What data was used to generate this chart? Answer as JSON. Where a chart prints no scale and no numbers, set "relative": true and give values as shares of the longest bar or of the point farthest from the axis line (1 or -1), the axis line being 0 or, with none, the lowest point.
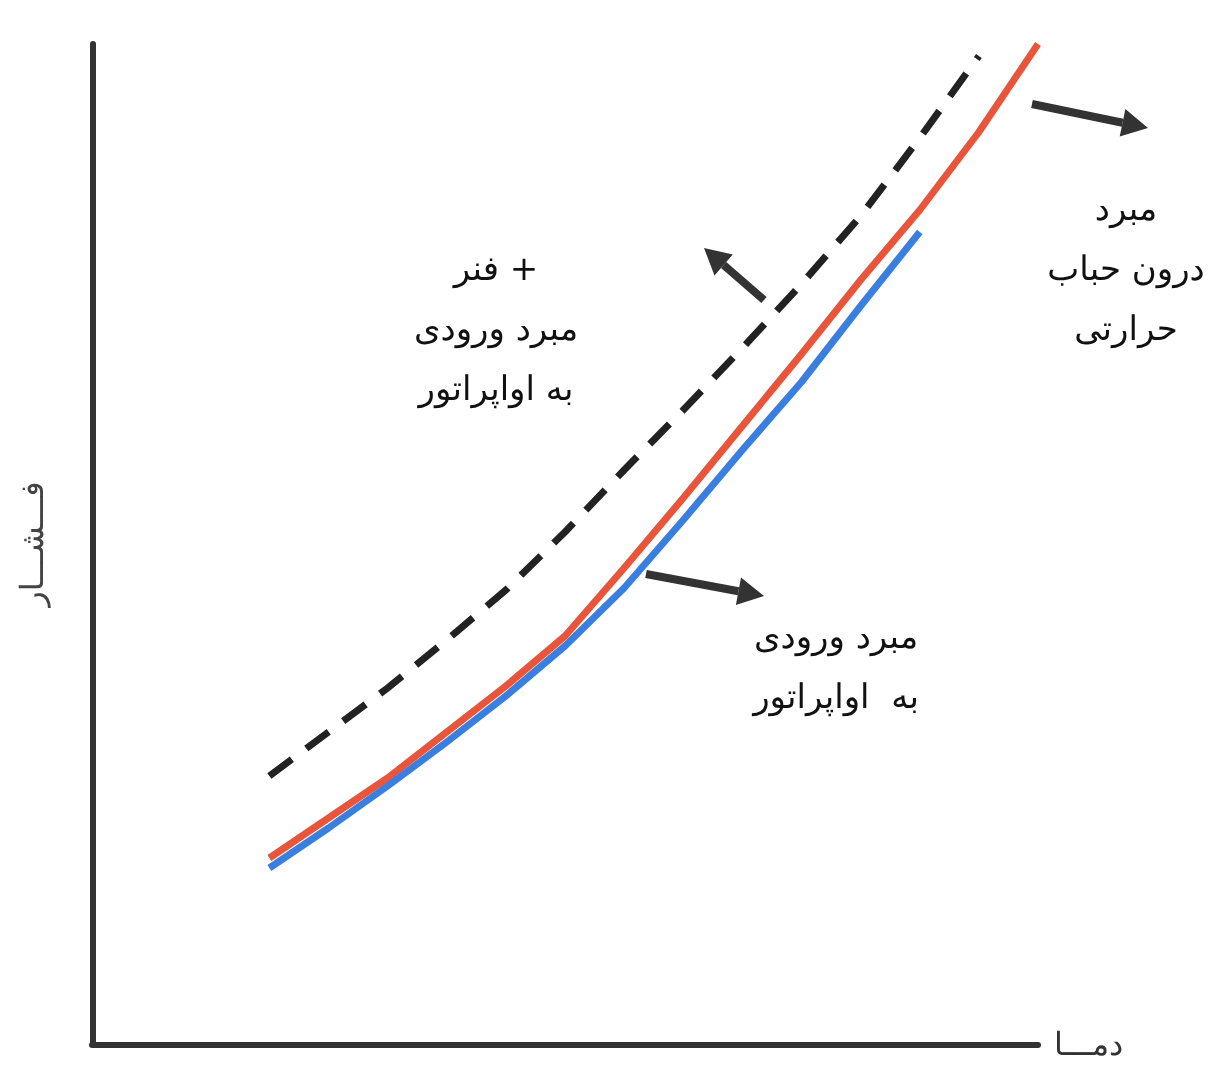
{
  "chart_data": {
    "type": "line",
    "relative": true,
    "xlabel": "دمـــا",
    "ylabel": "فـــشـــار",
    "categories": [
      null,
      null,
      null,
      null,
      null,
      null,
      null,
      null,
      null,
      null,
      null,
      null,
      null,
      null,
      null,
      null,
      null
    ],
    "series": [
      {
        "color": "#222222",
        "line_style": "dashed",
        "values": [
          null,
          null,
          null,
          0.268,
          0.312,
          0.356,
          0.404,
          0.454,
          0.512,
          0.574,
          0.634,
          0.696,
          0.76,
          0.828,
          0.906,
          0.988,
          null
        ]
      },
      {
        "color": "#e8553a",
        "line_style": "solid",
        "values": [
          null,
          null,
          null,
          0.186,
          0.226,
          0.266,
          0.312,
          0.358,
          0.408,
          0.476,
          0.546,
          0.618,
          0.69,
          0.764,
          0.834,
          0.912,
          1
        ]
      },
      {
        "color": "#3a7fe0",
        "line_style": "solid",
        "values": [
          null,
          null,
          null,
          0.176,
          0.216,
          0.258,
          0.302,
          0.348,
          0.398,
          0.456,
          0.524,
          0.594,
          0.662,
          0.738,
          0.812,
          null,
          null
        ]
      }
    ],
    "annotations": [
      "فنر +\nمبرد ورودی\nبه اواپراتور",
      "مبرد\nدرون حباب\nحرارتی",
      "مبرد ورودی\nبه  اواپراتور"
    ],
    "marker": "none"
  }
}
